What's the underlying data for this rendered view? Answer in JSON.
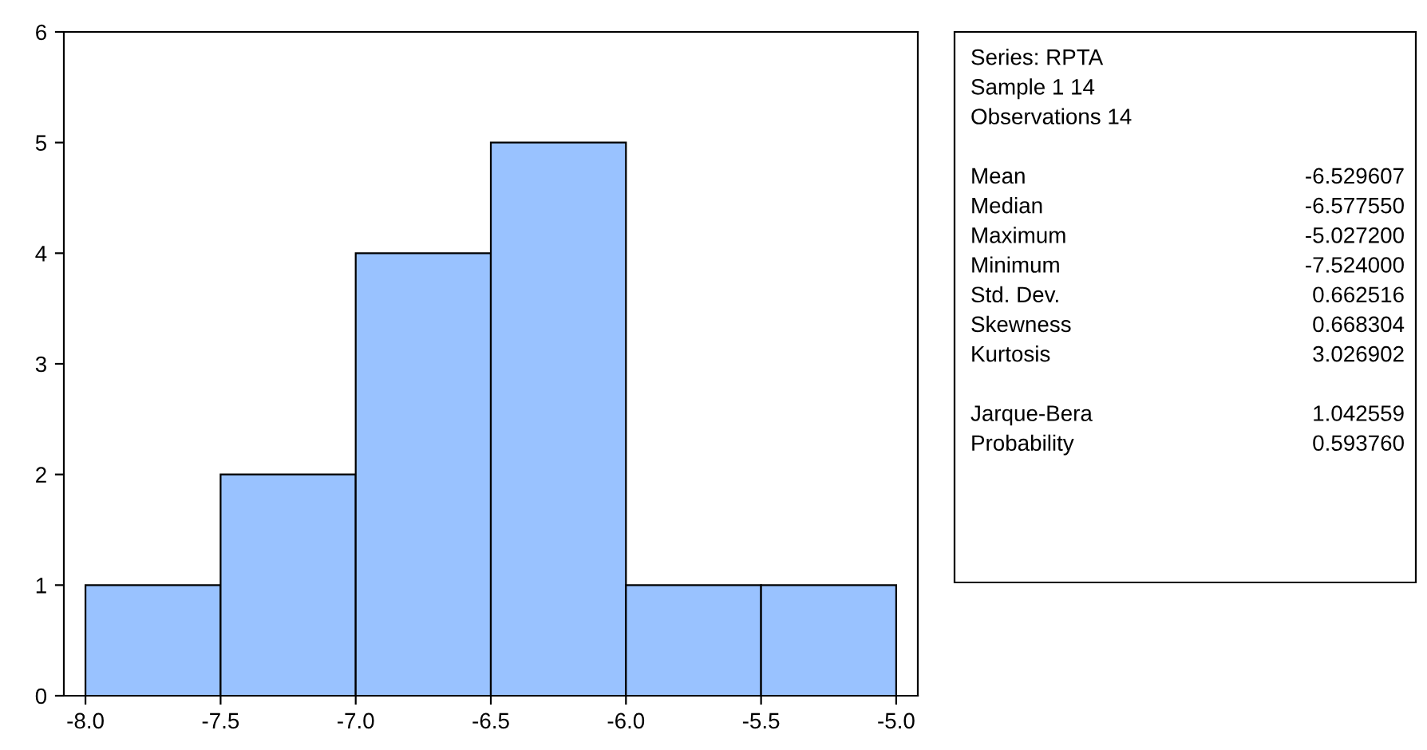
{
  "chart_data": {
    "type": "histogram",
    "bins": [
      -8.0,
      -7.5,
      -7.0,
      -6.5,
      -6.0,
      -5.5,
      -5.0
    ],
    "values": [
      1,
      2,
      4,
      5,
      1,
      1
    ],
    "color": "#99c2ff",
    "xlim": [
      -8.08,
      -4.92
    ],
    "ylim": [
      0,
      6
    ],
    "xticks": [
      {
        "value": -8.0,
        "label": "-8.0"
      },
      {
        "value": -7.5,
        "label": "-7.5"
      },
      {
        "value": -7.0,
        "label": "-7.0"
      },
      {
        "value": -6.5,
        "label": "-6.5"
      },
      {
        "value": -6.0,
        "label": "-6.0"
      },
      {
        "value": -5.5,
        "label": "-5.5"
      },
      {
        "value": -5.0,
        "label": "-5.0"
      }
    ],
    "yticks": [
      0,
      1,
      2,
      3,
      4,
      5,
      6
    ],
    "grid": false,
    "annotations": [
      "Series: RPTA",
      "Sample 1 14",
      "Observations 14",
      "Mean",
      "-6.529607",
      "Median",
      "-6.577550",
      "Maximum",
      "-5.027200",
      "Minimum",
      "-7.524000",
      "Std. Dev.",
      "0.662516",
      "Skewness",
      "0.668304",
      "Kurtosis",
      "3.026902",
      "Jarque-Bera",
      "1.042559",
      "Probability",
      "0.593760"
    ]
  }
}
